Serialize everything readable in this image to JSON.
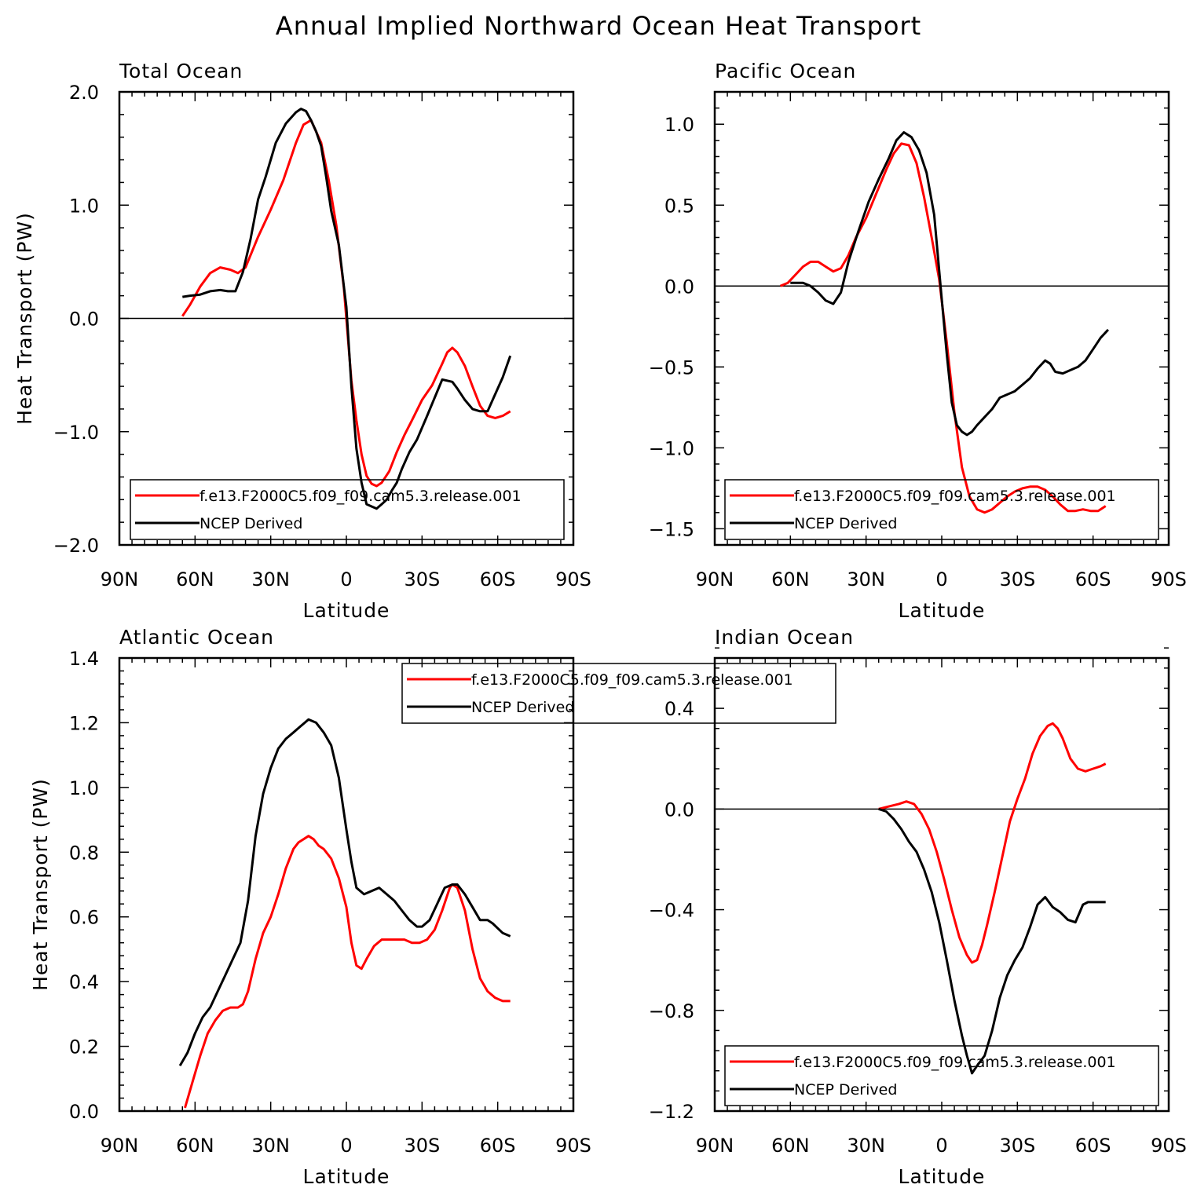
{
  "title": "Annual Implied Northward Ocean Heat Transport",
  "colors": {
    "model": "#ff0000",
    "ncep": "#000000"
  },
  "chart_data": [
    {
      "type": "line",
      "title": "Total Ocean",
      "xlabel": "Latitude",
      "ylabel": "Heat Transport (PW)",
      "xlim": [
        -90,
        90
      ],
      "ylim": [
        -2.0,
        2.0
      ],
      "xticks": [
        -90,
        -60,
        -30,
        0,
        30,
        60,
        90
      ],
      "xtick_labels": [
        "90N",
        "60N",
        "30N",
        "0",
        "30S",
        "60S",
        "90S"
      ],
      "yticks": [
        -2.0,
        -1.0,
        0.0,
        1.0,
        2.0
      ],
      "ytick_labels": [
        "−2.0",
        "−1.0",
        "0.0",
        "1.0",
        "2.0"
      ],
      "zero_line": true,
      "legend": {
        "position": "bottom",
        "entries": [
          "f.e13.F2000C5.f09_f09.cam5.3.release.001",
          "NCEP Derived"
        ]
      },
      "series": [
        {
          "name": "f.e13.F2000C5.f09_f09.cam5.3.release.001",
          "color": "#ff0000",
          "x": [
            -65,
            -62,
            -58,
            -54,
            -50,
            -46,
            -43,
            -40,
            -35,
            -30,
            -25,
            -20,
            -17,
            -14,
            -10,
            -7,
            -4,
            -1,
            2,
            4,
            6,
            8,
            10,
            12,
            14,
            17,
            20,
            23,
            26,
            30,
            34,
            38,
            40,
            42,
            44,
            47,
            50,
            53,
            56,
            59,
            62,
            65
          ],
          "y": [
            0.02,
            0.12,
            0.28,
            0.4,
            0.45,
            0.43,
            0.4,
            0.45,
            0.72,
            0.96,
            1.22,
            1.55,
            1.71,
            1.75,
            1.55,
            1.22,
            0.82,
            0.27,
            -0.55,
            -0.9,
            -1.2,
            -1.39,
            -1.46,
            -1.48,
            -1.45,
            -1.35,
            -1.18,
            -1.03,
            -0.9,
            -0.72,
            -0.59,
            -0.4,
            -0.3,
            -0.26,
            -0.3,
            -0.42,
            -0.6,
            -0.77,
            -0.86,
            -0.88,
            -0.86,
            -0.82
          ]
        },
        {
          "name": "NCEP Derived",
          "color": "#000000",
          "x": [
            -65,
            -62,
            -58,
            -54,
            -50,
            -47,
            -44,
            -41,
            -38,
            -35,
            -32,
            -28,
            -24,
            -20,
            -18,
            -16,
            -14,
            -12,
            -10,
            -8,
            -6,
            -3,
            0,
            2,
            4,
            6,
            8,
            10,
            12,
            14,
            16,
            18,
            20,
            22,
            25,
            28,
            32,
            35,
            38,
            40,
            42,
            44,
            47,
            50,
            53,
            56,
            58,
            62,
            65
          ],
          "y": [
            0.19,
            0.2,
            0.21,
            0.24,
            0.25,
            0.24,
            0.24,
            0.41,
            0.7,
            1.05,
            1.25,
            1.55,
            1.72,
            1.82,
            1.85,
            1.83,
            1.75,
            1.65,
            1.52,
            1.25,
            0.95,
            0.65,
            0.1,
            -0.6,
            -1.15,
            -1.45,
            -1.64,
            -1.66,
            -1.68,
            -1.64,
            -1.6,
            -1.52,
            -1.45,
            -1.33,
            -1.18,
            -1.07,
            -0.86,
            -0.7,
            -0.54,
            -0.55,
            -0.56,
            -0.62,
            -0.72,
            -0.8,
            -0.82,
            -0.82,
            -0.72,
            -0.52,
            -0.33
          ]
        }
      ]
    },
    {
      "type": "line",
      "title": "Pacific Ocean",
      "xlabel": "Latitude",
      "ylabel": "",
      "xlim": [
        -90,
        90
      ],
      "ylim": [
        -1.6,
        1.2
      ],
      "xticks": [
        -90,
        -60,
        -30,
        0,
        30,
        60,
        90
      ],
      "xtick_labels": [
        "90N",
        "60N",
        "30N",
        "0",
        "30S",
        "60S",
        "90S"
      ],
      "yticks": [
        -1.5,
        -1.0,
        -0.5,
        0.0,
        0.5,
        1.0
      ],
      "ytick_labels": [
        "−1.5",
        "−1.0",
        "−0.5",
        "0.0",
        "0.5",
        "1.0"
      ],
      "zero_line": true,
      "legend": {
        "position": "bottom",
        "entries": [
          "f.e13.F2000C5.f09_f09.cam5.3.release.001",
          "NCEP Derived"
        ]
      },
      "series": [
        {
          "name": "f.e13.F2000C5.f09_f09.cam5.3.release.001",
          "color": "#ff0000",
          "x": [
            -64,
            -61,
            -58,
            -55,
            -52,
            -49,
            -46,
            -43,
            -40,
            -37,
            -34,
            -30,
            -26,
            -22,
            -19,
            -16,
            -13,
            -10,
            -7,
            -4,
            -1,
            2,
            5,
            8,
            11,
            14,
            17,
            20,
            23,
            26,
            29,
            32,
            35,
            38,
            41,
            44,
            47,
            50,
            53,
            56,
            59,
            62,
            65
          ],
          "y": [
            0.0,
            0.02,
            0.07,
            0.12,
            0.15,
            0.15,
            0.12,
            0.09,
            0.11,
            0.19,
            0.3,
            0.42,
            0.57,
            0.72,
            0.82,
            0.88,
            0.87,
            0.76,
            0.55,
            0.3,
            0.04,
            -0.35,
            -0.78,
            -1.12,
            -1.3,
            -1.38,
            -1.4,
            -1.38,
            -1.34,
            -1.3,
            -1.27,
            -1.25,
            -1.24,
            -1.24,
            -1.26,
            -1.3,
            -1.35,
            -1.39,
            -1.39,
            -1.38,
            -1.39,
            -1.39,
            -1.36
          ]
        },
        {
          "name": "NCEP Derived",
          "color": "#000000",
          "x": [
            -60,
            -55,
            -52,
            -49,
            -46,
            -43,
            -40,
            -37,
            -33,
            -29,
            -25,
            -21,
            -18,
            -15,
            -12,
            -9,
            -6,
            -3,
            0,
            2,
            4,
            6,
            8,
            10,
            12,
            14,
            17,
            20,
            23,
            26,
            29,
            32,
            35,
            38,
            41,
            43,
            45,
            48,
            51,
            54,
            57,
            60,
            63,
            66
          ],
          "y": [
            0.02,
            0.02,
            0.0,
            -0.04,
            -0.09,
            -0.11,
            -0.04,
            0.15,
            0.34,
            0.52,
            0.66,
            0.79,
            0.9,
            0.95,
            0.92,
            0.84,
            0.7,
            0.44,
            -0.08,
            -0.42,
            -0.72,
            -0.86,
            -0.9,
            -0.92,
            -0.9,
            -0.86,
            -0.81,
            -0.76,
            -0.69,
            -0.67,
            -0.65,
            -0.61,
            -0.57,
            -0.51,
            -0.46,
            -0.48,
            -0.53,
            -0.54,
            -0.52,
            -0.5,
            -0.46,
            -0.39,
            -0.32,
            -0.27
          ]
        }
      ]
    },
    {
      "type": "line",
      "title": "Atlantic Ocean",
      "xlabel": "Latitude",
      "ylabel": "Heat Transport (PW)",
      "xlim": [
        -90,
        90
      ],
      "ylim": [
        0.0,
        1.4
      ],
      "xticks": [
        -90,
        -60,
        -30,
        0,
        30,
        60,
        90
      ],
      "xtick_labels": [
        "90N",
        "60N",
        "30N",
        "0",
        "30S",
        "60S",
        "90S"
      ],
      "yticks": [
        0.0,
        0.2,
        0.4,
        0.6,
        0.8,
        1.0,
        1.2,
        1.4
      ],
      "ytick_labels": [
        "0.0",
        "0.2",
        "0.4",
        "0.6",
        "0.8",
        "1.0",
        "1.2",
        "1.4"
      ],
      "zero_line": false,
      "legend": {
        "position": "top",
        "entries": [
          "f.e13.F2000C5.f09_f09.cam5.3.release.001",
          "NCEP Derived"
        ]
      },
      "series": [
        {
          "name": "f.e13.F2000C5.f09_f09.cam5.3.release.001",
          "color": "#ff0000",
          "x": [
            -64,
            -61,
            -58,
            -55,
            -52,
            -49,
            -46,
            -43,
            -41,
            -39,
            -36,
            -33,
            -30,
            -27,
            -24,
            -21,
            -19,
            -17,
            -15,
            -13,
            -11,
            -9,
            -6,
            -3,
            0,
            2,
            4,
            6,
            8,
            11,
            14,
            17,
            20,
            23,
            26,
            29,
            32,
            35,
            38,
            41,
            42,
            44,
            47,
            50,
            53,
            56,
            59,
            62,
            65
          ],
          "y": [
            0.01,
            0.09,
            0.17,
            0.24,
            0.28,
            0.31,
            0.32,
            0.32,
            0.33,
            0.37,
            0.47,
            0.55,
            0.6,
            0.67,
            0.75,
            0.81,
            0.83,
            0.84,
            0.85,
            0.84,
            0.82,
            0.81,
            0.78,
            0.72,
            0.63,
            0.52,
            0.45,
            0.44,
            0.47,
            0.51,
            0.53,
            0.53,
            0.53,
            0.53,
            0.52,
            0.52,
            0.53,
            0.56,
            0.62,
            0.69,
            0.7,
            0.69,
            0.62,
            0.5,
            0.41,
            0.37,
            0.35,
            0.34,
            0.34
          ]
        },
        {
          "name": "NCEP Derived",
          "color": "#000000",
          "x": [
            -66,
            -63,
            -60,
            -57,
            -54,
            -51,
            -48,
            -45,
            -42,
            -39,
            -36,
            -33,
            -30,
            -27,
            -24,
            -21,
            -18,
            -15,
            -12,
            -9,
            -6,
            -3,
            0,
            2,
            4,
            7,
            10,
            13,
            16,
            19,
            22,
            25,
            28,
            30,
            33,
            36,
            39,
            42,
            44,
            47,
            50,
            53,
            56,
            58,
            62,
            65
          ],
          "y": [
            0.14,
            0.18,
            0.24,
            0.29,
            0.32,
            0.37,
            0.42,
            0.47,
            0.52,
            0.65,
            0.85,
            0.98,
            1.06,
            1.12,
            1.15,
            1.17,
            1.19,
            1.21,
            1.2,
            1.17,
            1.13,
            1.03,
            0.87,
            0.77,
            0.69,
            0.67,
            0.68,
            0.69,
            0.67,
            0.65,
            0.62,
            0.59,
            0.57,
            0.57,
            0.59,
            0.64,
            0.69,
            0.7,
            0.7,
            0.67,
            0.63,
            0.59,
            0.59,
            0.58,
            0.55,
            0.54
          ]
        }
      ]
    },
    {
      "type": "line",
      "title": "Indian Ocean",
      "xlabel": "Latitude",
      "ylabel": "",
      "xlim": [
        -90,
        90
      ],
      "ylim": [
        -1.2,
        0.6
      ],
      "xticks": [
        -90,
        -60,
        -30,
        0,
        30,
        60,
        90
      ],
      "xtick_labels": [
        "90N",
        "60N",
        "30N",
        "0",
        "30S",
        "60S",
        "90S"
      ],
      "yticks": [
        -1.2,
        -0.8,
        -0.4,
        0.0,
        0.4
      ],
      "ytick_labels": [
        "−1.2",
        "−0.8",
        "−0.4",
        "0.0",
        "0.4"
      ],
      "zero_line": true,
      "legend": {
        "position": "bottom",
        "entries": [
          "f.e13.F2000C5.f09_f09.cam5.3.release.001",
          "NCEP Derived"
        ]
      },
      "series": [
        {
          "name": "f.e13.F2000C5.f09_f09.cam5.3.release.001",
          "color": "#ff0000",
          "x": [
            -25,
            -21,
            -17,
            -14,
            -11,
            -8,
            -5,
            -2,
            1,
            4,
            7,
            10,
            12,
            14,
            16,
            18,
            21,
            24,
            27,
            30,
            33,
            36,
            39,
            42,
            44,
            46,
            48,
            51,
            54,
            57,
            60,
            63,
            65
          ],
          "y": [
            0.0,
            0.01,
            0.02,
            0.03,
            0.02,
            -0.02,
            -0.08,
            -0.17,
            -0.28,
            -0.4,
            -0.51,
            -0.58,
            -0.61,
            -0.6,
            -0.54,
            -0.46,
            -0.33,
            -0.19,
            -0.05,
            0.04,
            0.12,
            0.22,
            0.29,
            0.33,
            0.34,
            0.32,
            0.28,
            0.2,
            0.16,
            0.15,
            0.16,
            0.17,
            0.18
          ]
        },
        {
          "name": "NCEP Derived",
          "color": "#000000",
          "x": [
            -25,
            -22,
            -19,
            -16,
            -13,
            -10,
            -7,
            -4,
            -1,
            2,
            5,
            8,
            10,
            12,
            14,
            17,
            20,
            23,
            26,
            29,
            32,
            35,
            38,
            41,
            44,
            47,
            50,
            53,
            56,
            58,
            61,
            64,
            65
          ],
          "y": [
            0.0,
            -0.01,
            -0.04,
            -0.08,
            -0.13,
            -0.17,
            -0.24,
            -0.33,
            -0.45,
            -0.6,
            -0.76,
            -0.9,
            -0.98,
            -1.05,
            -1.02,
            -0.98,
            -0.88,
            -0.75,
            -0.66,
            -0.6,
            -0.55,
            -0.47,
            -0.38,
            -0.35,
            -0.39,
            -0.41,
            -0.44,
            -0.45,
            -0.38,
            -0.37,
            -0.37,
            -0.37,
            -0.37
          ]
        }
      ]
    }
  ]
}
